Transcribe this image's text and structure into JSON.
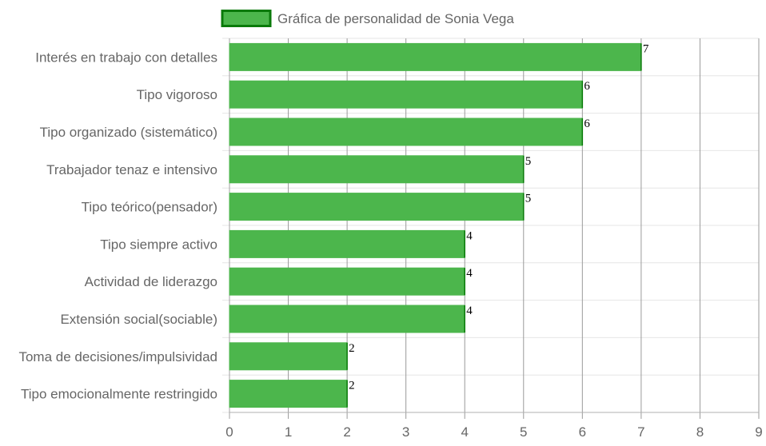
{
  "chart_data": {
    "type": "bar",
    "orientation": "horizontal",
    "title": "",
    "xlabel": "",
    "ylabel": "",
    "xlim": [
      0,
      9
    ],
    "x_ticks": [
      "0",
      "1",
      "2",
      "3",
      "4",
      "5",
      "6",
      "7",
      "8",
      "9"
    ],
    "grid": true,
    "legend_position": "top",
    "categories": [
      "Interés en trabajo con detalles",
      "Tipo vigoroso",
      "Tipo organizado (sistemático)",
      "Trabajador tenaz e intensivo",
      "Tipo teórico(pensador)",
      "Tipo siempre activo",
      "Actividad de liderazgo",
      "Extensión social(sociable)",
      "Toma de decisiones/impulsividad",
      "Tipo emocionalmente restringido"
    ],
    "series": [
      {
        "name": "Gráfica de personalidad de Sonia Vega",
        "values": [
          7,
          6,
          6,
          5,
          5,
          4,
          4,
          4,
          2,
          2
        ],
        "color": "#4cb64c",
        "border_color": "#0a7a0a"
      }
    ]
  }
}
